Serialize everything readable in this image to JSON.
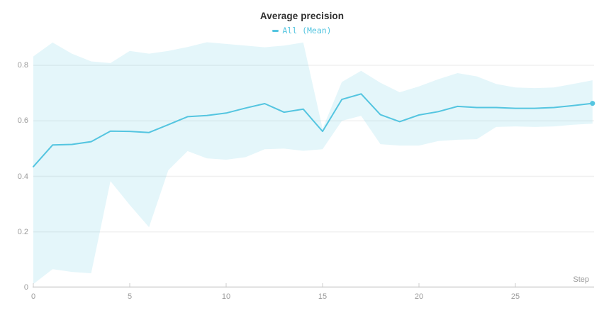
{
  "colors": {
    "accent": "#54c5e0",
    "band_fill": "rgba(84,197,224,0.16)",
    "grid": "#f0f0f0",
    "axis_line": "#dcdcdc",
    "tick_mark": "#cccccc",
    "tick_text": "#9b9b9b",
    "title_text": "#2f2f2f"
  },
  "chart_data": {
    "type": "line",
    "title": "Average precision",
    "xlabel": "Step",
    "ylabel": "",
    "xlim": [
      0,
      29.1
    ],
    "ylim": [
      0,
      0.9
    ],
    "grid": "horizontal-only",
    "legend_position": "top-center",
    "x_ticks": [
      0,
      5,
      10,
      15,
      20,
      25
    ],
    "y_ticks": [
      0,
      0.2,
      0.4,
      0.6,
      0.8
    ],
    "series": [
      {
        "name": "All (Mean)",
        "has_minmax_band": true,
        "endpoint_dot": true,
        "x": [
          0,
          1,
          2,
          3,
          4,
          5,
          6,
          7,
          8,
          9,
          10,
          11,
          12,
          13,
          14,
          15,
          16,
          17,
          18,
          19,
          20,
          21,
          22,
          23,
          24,
          25,
          26,
          27,
          28,
          29
        ],
        "mean": [
          0.435,
          0.513,
          0.515,
          0.525,
          0.563,
          0.562,
          0.558,
          0.586,
          0.615,
          0.619,
          0.628,
          0.646,
          0.662,
          0.631,
          0.642,
          0.562,
          0.677,
          0.697,
          0.622,
          0.597,
          0.621,
          0.633,
          0.652,
          0.648,
          0.648,
          0.645,
          0.645,
          0.648,
          0.655,
          0.663
        ],
        "max": [
          0.832,
          0.882,
          0.842,
          0.814,
          0.808,
          0.852,
          0.842,
          0.852,
          0.866,
          0.883,
          0.877,
          0.871,
          0.865,
          0.871,
          0.882,
          0.572,
          0.74,
          0.78,
          0.737,
          0.703,
          0.724,
          0.75,
          0.772,
          0.76,
          0.733,
          0.72,
          0.718,
          0.72,
          0.733,
          0.746
        ],
        "min": [
          0.012,
          0.066,
          0.056,
          0.051,
          0.383,
          0.297,
          0.217,
          0.422,
          0.491,
          0.465,
          0.46,
          0.469,
          0.498,
          0.5,
          0.492,
          0.498,
          0.6,
          0.618,
          0.516,
          0.511,
          0.511,
          0.527,
          0.532,
          0.534,
          0.578,
          0.58,
          0.578,
          0.58,
          0.586,
          0.59
        ]
      }
    ]
  }
}
